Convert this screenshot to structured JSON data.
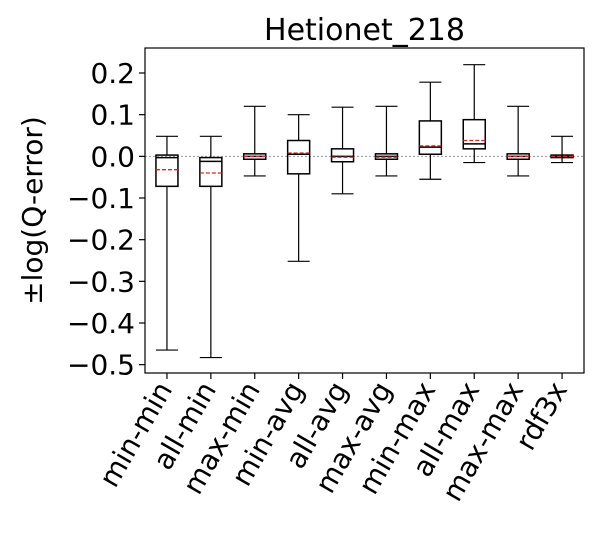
{
  "chart_data": {
    "type": "box",
    "title": "Hetionet_218",
    "xlabel": "",
    "ylabel": "±log(Q-error)",
    "ylim": [
      -0.52,
      0.26
    ],
    "yticks": [
      0.2,
      0.1,
      0.0,
      -0.1,
      -0.2,
      -0.3,
      -0.4,
      -0.5
    ],
    "ytick_labels": [
      "0.2",
      "0.1",
      "0.0",
      "−0.1",
      "−0.2",
      "−0.3",
      "−0.4",
      "−0.5"
    ],
    "reference_line": 0.0,
    "categories": [
      "min-min",
      "all-min",
      "max-min",
      "min-avg",
      "all-avg",
      "max-avg",
      "min-max",
      "all-max",
      "max-max",
      "rdf3x"
    ],
    "boxes": [
      {
        "label": "min-min",
        "whisker_low": -0.465,
        "q1": -0.072,
        "median": -0.003,
        "mean": -0.032,
        "q3": 0.003,
        "whisker_high": 0.048
      },
      {
        "label": "all-min",
        "whisker_low": -0.483,
        "q1": -0.072,
        "median": -0.012,
        "mean": -0.04,
        "q3": -0.003,
        "whisker_high": 0.048
      },
      {
        "label": "max-min",
        "whisker_low": -0.047,
        "q1": -0.007,
        "median": 0.0,
        "mean": 0.0,
        "q3": 0.006,
        "whisker_high": 0.12
      },
      {
        "label": "min-avg",
        "whisker_low": -0.252,
        "q1": -0.042,
        "median": 0.005,
        "mean": 0.008,
        "q3": 0.038,
        "whisker_high": 0.1
      },
      {
        "label": "all-avg",
        "whisker_low": -0.09,
        "q1": -0.013,
        "median": 0.0,
        "mean": -0.002,
        "q3": 0.018,
        "whisker_high": 0.118
      },
      {
        "label": "max-avg",
        "whisker_low": -0.047,
        "q1": -0.007,
        "median": 0.0,
        "mean": -0.002,
        "q3": 0.006,
        "whisker_high": 0.12
      },
      {
        "label": "min-max",
        "whisker_low": -0.055,
        "q1": 0.005,
        "median": 0.022,
        "mean": 0.025,
        "q3": 0.085,
        "whisker_high": 0.178
      },
      {
        "label": "all-max",
        "whisker_low": -0.015,
        "q1": 0.018,
        "median": 0.03,
        "mean": 0.038,
        "q3": 0.088,
        "whisker_high": 0.22
      },
      {
        "label": "max-max",
        "whisker_low": -0.047,
        "q1": -0.007,
        "median": 0.0,
        "mean": 0.0,
        "q3": 0.006,
        "whisker_high": 0.12
      },
      {
        "label": "rdf3x",
        "whisker_low": -0.015,
        "q1": -0.003,
        "median": 0.0,
        "mean": 0.0,
        "q3": 0.003,
        "whisker_high": 0.048
      }
    ],
    "colors": {
      "box": "#000000",
      "median": "#000000",
      "mean": "#d62728",
      "reference": "#9a9a9a"
    },
    "grid": false,
    "legend": "none"
  }
}
